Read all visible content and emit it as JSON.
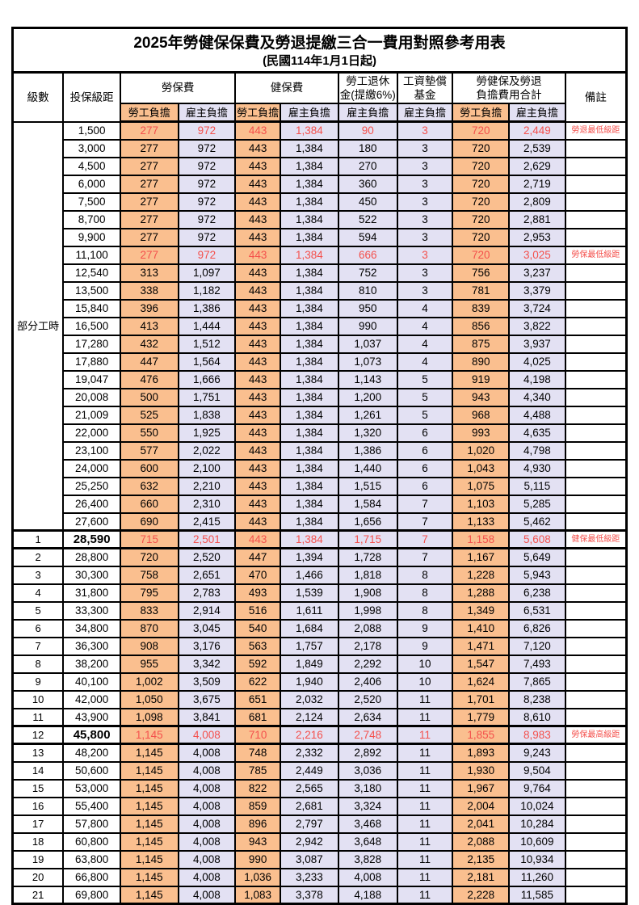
{
  "title": "2025年勞健保保費及勞退提繳三合一費用對照參考用表",
  "subtitle": "(民國114年1月1日起)",
  "columns": {
    "level": "級數",
    "bracket": "投保級距",
    "labor_insurance": "勞保費",
    "health_insurance": "健保費",
    "pension_line1": "勞工退休",
    "pension_line2": "金(提繳6%)",
    "wage_fund_line1": "工資墊償",
    "wage_fund_line2": "基金",
    "total_line1": "勞健保及勞退",
    "total_line2": "負擔費用合計",
    "remarks": "備註",
    "employee": "勞工負擔",
    "employer": "雇主負擔"
  },
  "part_time_label": "部分工時",
  "colors": {
    "employee_bg": "#FABF8F",
    "employer_bg": "#E3E1F3",
    "highlight_red": "#F4504C"
  },
  "rows": [
    {
      "group": "part_time",
      "level": "",
      "bracket": "1,500",
      "values": [
        "277",
        "972",
        "443",
        "1,384",
        "90",
        "3",
        "720",
        "2,449"
      ],
      "note": "勞退最低級距",
      "red": true,
      "emphasis": false
    },
    {
      "group": "part_time",
      "level": "",
      "bracket": "3,000",
      "values": [
        "277",
        "972",
        "443",
        "1,384",
        "180",
        "3",
        "720",
        "2,539"
      ],
      "note": "",
      "red": false,
      "emphasis": false
    },
    {
      "group": "part_time",
      "level": "",
      "bracket": "4,500",
      "values": [
        "277",
        "972",
        "443",
        "1,384",
        "270",
        "3",
        "720",
        "2,629"
      ],
      "note": "",
      "red": false,
      "emphasis": false
    },
    {
      "group": "part_time",
      "level": "",
      "bracket": "6,000",
      "values": [
        "277",
        "972",
        "443",
        "1,384",
        "360",
        "3",
        "720",
        "2,719"
      ],
      "note": "",
      "red": false,
      "emphasis": false
    },
    {
      "group": "part_time",
      "level": "",
      "bracket": "7,500",
      "values": [
        "277",
        "972",
        "443",
        "1,384",
        "450",
        "3",
        "720",
        "2,809"
      ],
      "note": "",
      "red": false,
      "emphasis": false
    },
    {
      "group": "part_time",
      "level": "",
      "bracket": "8,700",
      "values": [
        "277",
        "972",
        "443",
        "1,384",
        "522",
        "3",
        "720",
        "2,881"
      ],
      "note": "",
      "red": false,
      "emphasis": false
    },
    {
      "group": "part_time",
      "level": "",
      "bracket": "9,900",
      "values": [
        "277",
        "972",
        "443",
        "1,384",
        "594",
        "3",
        "720",
        "2,953"
      ],
      "note": "",
      "red": false,
      "emphasis": false
    },
    {
      "group": "part_time",
      "level": "",
      "bracket": "11,100",
      "values": [
        "277",
        "972",
        "443",
        "1,384",
        "666",
        "3",
        "720",
        "3,025"
      ],
      "note": "勞保最低級距",
      "red": true,
      "emphasis": false
    },
    {
      "group": "part_time",
      "level": "",
      "bracket": "12,540",
      "values": [
        "313",
        "1,097",
        "443",
        "1,384",
        "752",
        "3",
        "756",
        "3,237"
      ],
      "note": "",
      "red": false,
      "emphasis": false
    },
    {
      "group": "part_time",
      "level": "",
      "bracket": "13,500",
      "values": [
        "338",
        "1,182",
        "443",
        "1,384",
        "810",
        "3",
        "781",
        "3,379"
      ],
      "note": "",
      "red": false,
      "emphasis": false
    },
    {
      "group": "part_time",
      "level": "",
      "bracket": "15,840",
      "values": [
        "396",
        "1,386",
        "443",
        "1,384",
        "950",
        "4",
        "839",
        "3,724"
      ],
      "note": "",
      "red": false,
      "emphasis": false
    },
    {
      "group": "part_time",
      "level": "",
      "bracket": "16,500",
      "values": [
        "413",
        "1,444",
        "443",
        "1,384",
        "990",
        "4",
        "856",
        "3,822"
      ],
      "note": "",
      "red": false,
      "emphasis": false
    },
    {
      "group": "part_time",
      "level": "",
      "bracket": "17,280",
      "values": [
        "432",
        "1,512",
        "443",
        "1,384",
        "1,037",
        "4",
        "875",
        "3,937"
      ],
      "note": "",
      "red": false,
      "emphasis": false
    },
    {
      "group": "part_time",
      "level": "",
      "bracket": "17,880",
      "values": [
        "447",
        "1,564",
        "443",
        "1,384",
        "1,073",
        "4",
        "890",
        "4,025"
      ],
      "note": "",
      "red": false,
      "emphasis": false
    },
    {
      "group": "part_time",
      "level": "",
      "bracket": "19,047",
      "values": [
        "476",
        "1,666",
        "443",
        "1,384",
        "1,143",
        "5",
        "919",
        "4,198"
      ],
      "note": "",
      "red": false,
      "emphasis": false
    },
    {
      "group": "part_time",
      "level": "",
      "bracket": "20,008",
      "values": [
        "500",
        "1,751",
        "443",
        "1,384",
        "1,200",
        "5",
        "943",
        "4,340"
      ],
      "note": "",
      "red": false,
      "emphasis": false
    },
    {
      "group": "part_time",
      "level": "",
      "bracket": "21,009",
      "values": [
        "525",
        "1,838",
        "443",
        "1,384",
        "1,261",
        "5",
        "968",
        "4,488"
      ],
      "note": "",
      "red": false,
      "emphasis": false
    },
    {
      "group": "part_time",
      "level": "",
      "bracket": "22,000",
      "values": [
        "550",
        "1,925",
        "443",
        "1,384",
        "1,320",
        "6",
        "993",
        "4,635"
      ],
      "note": "",
      "red": false,
      "emphasis": false
    },
    {
      "group": "part_time",
      "level": "",
      "bracket": "23,100",
      "values": [
        "577",
        "2,022",
        "443",
        "1,384",
        "1,386",
        "6",
        "1,020",
        "4,798"
      ],
      "note": "",
      "red": false,
      "emphasis": false
    },
    {
      "group": "part_time",
      "level": "",
      "bracket": "24,000",
      "values": [
        "600",
        "2,100",
        "443",
        "1,384",
        "1,440",
        "6",
        "1,043",
        "4,930"
      ],
      "note": "",
      "red": false,
      "emphasis": false
    },
    {
      "group": "part_time",
      "level": "",
      "bracket": "25,250",
      "values": [
        "632",
        "2,210",
        "443",
        "1,384",
        "1,515",
        "6",
        "1,075",
        "5,115"
      ],
      "note": "",
      "red": false,
      "emphasis": false
    },
    {
      "group": "part_time",
      "level": "",
      "bracket": "26,400",
      "values": [
        "660",
        "2,310",
        "443",
        "1,384",
        "1,584",
        "7",
        "1,103",
        "5,285"
      ],
      "note": "",
      "red": false,
      "emphasis": false
    },
    {
      "group": "part_time",
      "level": "",
      "bracket": "27,600",
      "values": [
        "690",
        "2,415",
        "443",
        "1,384",
        "1,656",
        "7",
        "1,133",
        "5,462"
      ],
      "note": "",
      "red": false,
      "emphasis": false
    },
    {
      "group": "level",
      "level": "1",
      "bracket": "28,590",
      "values": [
        "715",
        "2,501",
        "443",
        "1,384",
        "1,715",
        "7",
        "1,158",
        "5,608"
      ],
      "note": "健保最低級距",
      "red": true,
      "emphasis": true
    },
    {
      "group": "level",
      "level": "2",
      "bracket": "28,800",
      "values": [
        "720",
        "2,520",
        "447",
        "1,394",
        "1,728",
        "7",
        "1,167",
        "5,649"
      ],
      "note": "",
      "red": false,
      "emphasis": false
    },
    {
      "group": "level",
      "level": "3",
      "bracket": "30,300",
      "values": [
        "758",
        "2,651",
        "470",
        "1,466",
        "1,818",
        "8",
        "1,228",
        "5,943"
      ],
      "note": "",
      "red": false,
      "emphasis": false
    },
    {
      "group": "level",
      "level": "4",
      "bracket": "31,800",
      "values": [
        "795",
        "2,783",
        "493",
        "1,539",
        "1,908",
        "8",
        "1,288",
        "6,238"
      ],
      "note": "",
      "red": false,
      "emphasis": false
    },
    {
      "group": "level",
      "level": "5",
      "bracket": "33,300",
      "values": [
        "833",
        "2,914",
        "516",
        "1,611",
        "1,998",
        "8",
        "1,349",
        "6,531"
      ],
      "note": "",
      "red": false,
      "emphasis": false
    },
    {
      "group": "level",
      "level": "6",
      "bracket": "34,800",
      "values": [
        "870",
        "3,045",
        "540",
        "1,684",
        "2,088",
        "9",
        "1,410",
        "6,826"
      ],
      "note": "",
      "red": false,
      "emphasis": false
    },
    {
      "group": "level",
      "level": "7",
      "bracket": "36,300",
      "values": [
        "908",
        "3,176",
        "563",
        "1,757",
        "2,178",
        "9",
        "1,471",
        "7,120"
      ],
      "note": "",
      "red": false,
      "emphasis": false
    },
    {
      "group": "level",
      "level": "8",
      "bracket": "38,200",
      "values": [
        "955",
        "3,342",
        "592",
        "1,849",
        "2,292",
        "10",
        "1,547",
        "7,493"
      ],
      "note": "",
      "red": false,
      "emphasis": false
    },
    {
      "group": "level",
      "level": "9",
      "bracket": "40,100",
      "values": [
        "1,002",
        "3,509",
        "622",
        "1,940",
        "2,406",
        "10",
        "1,624",
        "7,865"
      ],
      "note": "",
      "red": false,
      "emphasis": false
    },
    {
      "group": "level",
      "level": "10",
      "bracket": "42,000",
      "values": [
        "1,050",
        "3,675",
        "651",
        "2,032",
        "2,520",
        "11",
        "1,701",
        "8,238"
      ],
      "note": "",
      "red": false,
      "emphasis": false
    },
    {
      "group": "level",
      "level": "11",
      "bracket": "43,900",
      "values": [
        "1,098",
        "3,841",
        "681",
        "2,124",
        "2,634",
        "11",
        "1,779",
        "8,610"
      ],
      "note": "",
      "red": false,
      "emphasis": false
    },
    {
      "group": "level",
      "level": "12",
      "bracket": "45,800",
      "values": [
        "1,145",
        "4,008",
        "710",
        "2,216",
        "2,748",
        "11",
        "1,855",
        "8,983"
      ],
      "note": "勞保最高級距",
      "red": true,
      "emphasis": true
    },
    {
      "group": "level",
      "level": "13",
      "bracket": "48,200",
      "values": [
        "1,145",
        "4,008",
        "748",
        "2,332",
        "2,892",
        "11",
        "1,893",
        "9,243"
      ],
      "note": "",
      "red": false,
      "emphasis": false
    },
    {
      "group": "level",
      "level": "14",
      "bracket": "50,600",
      "values": [
        "1,145",
        "4,008",
        "785",
        "2,449",
        "3,036",
        "11",
        "1,930",
        "9,504"
      ],
      "note": "",
      "red": false,
      "emphasis": false
    },
    {
      "group": "level",
      "level": "15",
      "bracket": "53,000",
      "values": [
        "1,145",
        "4,008",
        "822",
        "2,565",
        "3,180",
        "11",
        "1,967",
        "9,764"
      ],
      "note": "",
      "red": false,
      "emphasis": false
    },
    {
      "group": "level",
      "level": "16",
      "bracket": "55,400",
      "values": [
        "1,145",
        "4,008",
        "859",
        "2,681",
        "3,324",
        "11",
        "2,004",
        "10,024"
      ],
      "note": "",
      "red": false,
      "emphasis": false
    },
    {
      "group": "level",
      "level": "17",
      "bracket": "57,800",
      "values": [
        "1,145",
        "4,008",
        "896",
        "2,797",
        "3,468",
        "11",
        "2,041",
        "10,284"
      ],
      "note": "",
      "red": false,
      "emphasis": false
    },
    {
      "group": "level",
      "level": "18",
      "bracket": "60,800",
      "values": [
        "1,145",
        "4,008",
        "943",
        "2,942",
        "3,648",
        "11",
        "2,088",
        "10,609"
      ],
      "note": "",
      "red": false,
      "emphasis": false
    },
    {
      "group": "level",
      "level": "19",
      "bracket": "63,800",
      "values": [
        "1,145",
        "4,008",
        "990",
        "3,087",
        "3,828",
        "11",
        "2,135",
        "10,934"
      ],
      "note": "",
      "red": false,
      "emphasis": false
    },
    {
      "group": "level",
      "level": "20",
      "bracket": "66,800",
      "values": [
        "1,145",
        "4,008",
        "1,036",
        "3,233",
        "4,008",
        "11",
        "2,181",
        "11,260"
      ],
      "note": "",
      "red": false,
      "emphasis": false
    },
    {
      "group": "level",
      "level": "21",
      "bracket": "69,800",
      "values": [
        "1,145",
        "4,008",
        "1,083",
        "3,378",
        "4,188",
        "11",
        "2,228",
        "11,585"
      ],
      "note": "",
      "red": false,
      "emphasis": false
    }
  ]
}
